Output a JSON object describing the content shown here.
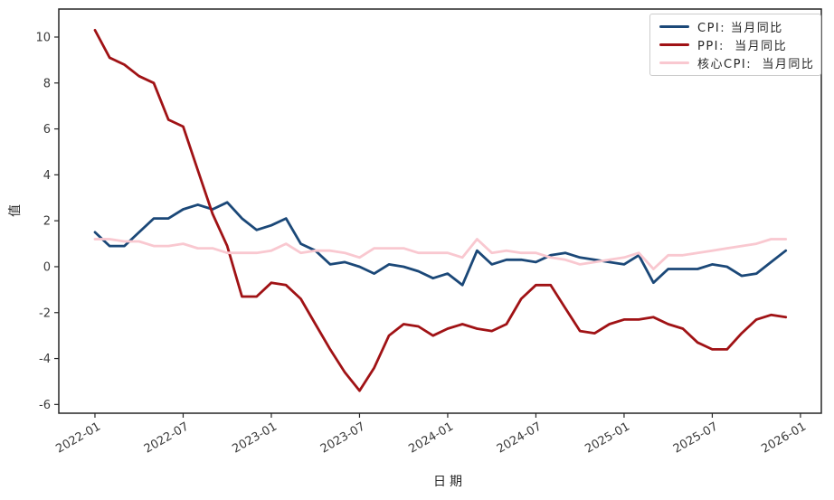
{
  "chart_data": {
    "type": "line",
    "title": "",
    "xlabel": "日期",
    "ylabel": "值",
    "grid": false,
    "legend_position": "upper right",
    "x": [
      "2022-01",
      "2022-02",
      "2022-03",
      "2022-04",
      "2022-05",
      "2022-06",
      "2022-07",
      "2022-08",
      "2022-09",
      "2022-10",
      "2022-11",
      "2022-12",
      "2023-01",
      "2023-02",
      "2023-03",
      "2023-04",
      "2023-05",
      "2023-06",
      "2023-07",
      "2023-08",
      "2023-09",
      "2023-10",
      "2023-11",
      "2023-12",
      "2024-01",
      "2024-02",
      "2024-03",
      "2024-04",
      "2024-05",
      "2024-06",
      "2024-07",
      "2024-08",
      "2024-09",
      "2024-10",
      "2024-11",
      "2024-12",
      "2025-01",
      "2025-02",
      "2025-03",
      "2025-04",
      "2025-05",
      "2025-06",
      "2025-07",
      "2025-08",
      "2025-09",
      "2025-10",
      "2025-11",
      "2025-12"
    ],
    "series": [
      {
        "id": "cpi",
        "name": "CPI: 当月同比",
        "color": "#1b4878",
        "values": [
          1.5,
          0.9,
          0.9,
          1.5,
          2.1,
          2.1,
          2.5,
          2.7,
          2.5,
          2.8,
          2.1,
          1.6,
          1.8,
          2.1,
          1.0,
          0.7,
          0.1,
          0.2,
          0.0,
          -0.3,
          0.1,
          0.0,
          -0.2,
          -0.5,
          -0.3,
          -0.8,
          0.7,
          0.1,
          0.3,
          0.3,
          0.2,
          0.5,
          0.6,
          0.4,
          0.3,
          0.2,
          0.1,
          0.5,
          -0.7,
          -0.1,
          -0.1,
          -0.1,
          0.1,
          0.0,
          -0.4,
          -0.3,
          0.2,
          0.7
        ]
      },
      {
        "id": "ppi",
        "name": "PPI:  当月同比",
        "color": "#a01215",
        "values": [
          10.3,
          9.1,
          8.8,
          8.3,
          8.0,
          6.4,
          6.1,
          4.2,
          2.3,
          0.9,
          -1.3,
          -1.3,
          -0.7,
          -0.8,
          -1.4,
          -2.5,
          -3.6,
          -4.6,
          -5.4,
          -4.4,
          -3.0,
          -2.5,
          -2.6,
          -3.0,
          -2.7,
          -2.5,
          -2.7,
          -2.8,
          -2.5,
          -1.4,
          -0.8,
          -0.8,
          -1.8,
          -2.8,
          -2.9,
          -2.5,
          -2.3,
          -2.3,
          -2.2,
          -2.5,
          -2.7,
          -3.3,
          -3.6,
          -3.6,
          -2.9,
          -2.3,
          -2.1,
          -2.2
        ]
      },
      {
        "id": "core_cpi",
        "name": "核心CPI:  当月同比",
        "color": "#f9c8d0",
        "values": [
          1.2,
          1.2,
          1.1,
          1.1,
          0.9,
          0.9,
          1.0,
          0.8,
          0.8,
          0.6,
          0.6,
          0.6,
          0.7,
          1.0,
          0.6,
          0.7,
          0.7,
          0.6,
          0.4,
          0.8,
          0.8,
          0.8,
          0.6,
          0.6,
          0.6,
          0.4,
          1.2,
          0.6,
          0.7,
          0.6,
          0.6,
          0.4,
          0.3,
          0.1,
          0.2,
          0.3,
          0.4,
          0.6,
          -0.1,
          0.5,
          0.5,
          0.6,
          0.7,
          0.8,
          0.9,
          1.0,
          1.2,
          1.2
        ]
      }
    ],
    "yticks": [
      10,
      8,
      6,
      4,
      2,
      0,
      -2,
      -4,
      -6
    ],
    "xticks": [
      "2022-01",
      "2022-07",
      "2023-01",
      "2023-07",
      "2024-01",
      "2024-07",
      "2025-01",
      "2025-07",
      "2026-01"
    ],
    "ylim": [
      -6.38,
      11.22
    ],
    "xlim_month_index": [
      -2.46,
      49.42
    ]
  }
}
